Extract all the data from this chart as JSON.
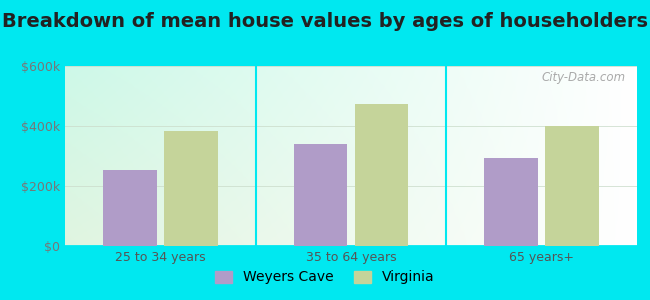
{
  "title": "Breakdown of mean house values by ages of householders",
  "categories": [
    "25 to 34 years",
    "35 to 64 years",
    "65 years+"
  ],
  "weyers_cave": [
    255000,
    340000,
    295000
  ],
  "virginia": [
    385000,
    475000,
    400000
  ],
  "ylim": [
    0,
    600000
  ],
  "yticks": [
    0,
    200000,
    400000,
    600000
  ],
  "ytick_labels": [
    "$0",
    "$200k",
    "$400k",
    "$600k"
  ],
  "bar_color_weyers": "#b09cc8",
  "bar_color_virginia": "#c5d49a",
  "legend_weyers": "Weyers Cave",
  "legend_virginia": "Virginia",
  "bg_outer": "#00e8f0",
  "title_fontsize": 14,
  "tick_fontsize": 9,
  "legend_fontsize": 10,
  "bar_width": 0.28,
  "title_color": "#222222"
}
